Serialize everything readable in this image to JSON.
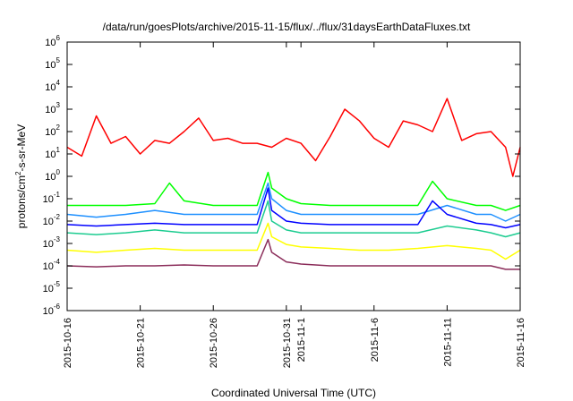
{
  "chart_data": {
    "type": "line",
    "title": "/data/run/goesPlots/archive/2015-11-15/flux/../flux/31daysEarthDataFluxes.txt",
    "xlabel": "Coordinated Universal Time (UTC)",
    "ylabel": {
      "base": "protons/cm",
      "exp": "2",
      "rest": "-s-sr-MeV"
    },
    "yscale": "log",
    "xlim": [
      "2015-10-16",
      "2015-11-16"
    ],
    "ylim": [
      1e-06,
      1000000
    ],
    "grid": false,
    "y_ticks": [
      {
        "base": "10",
        "exp": "-6",
        "value": 1e-06
      },
      {
        "base": "10",
        "exp": "-5",
        "value": 1e-05
      },
      {
        "base": "10",
        "exp": "-4",
        "value": 0.0001
      },
      {
        "base": "10",
        "exp": "-3",
        "value": 0.001
      },
      {
        "base": "10",
        "exp": "-2",
        "value": 0.01
      },
      {
        "base": "10",
        "exp": "-1",
        "value": 0.1
      },
      {
        "base": "10",
        "exp": "0",
        "value": 1
      },
      {
        "base": "10",
        "exp": "1",
        "value": 10
      },
      {
        "base": "10",
        "exp": "2",
        "value": 100
      },
      {
        "base": "10",
        "exp": "3",
        "value": 1000
      },
      {
        "base": "10",
        "exp": "4",
        "value": 10000
      },
      {
        "base": "10",
        "exp": "5",
        "value": 100000
      },
      {
        "base": "10",
        "exp": "6",
        "value": 1000000
      }
    ],
    "x_ticks": [
      {
        "label": "2015-10-16",
        "date": "2015-10-16"
      },
      {
        "label": "2015-10-21",
        "date": "2015-10-21"
      },
      {
        "label": "2015-10-26",
        "date": "2015-10-26"
      },
      {
        "label": "2015-10-31",
        "date": "2015-10-31"
      },
      {
        "label": "2015-11-1",
        "date": "2015-11-01"
      },
      {
        "label": "2015-11-6",
        "date": "2015-11-06"
      },
      {
        "label": "2015-11-11",
        "date": "2015-11-11"
      },
      {
        "label": "2015-11-16",
        "date": "2015-11-16"
      }
    ],
    "series": [
      {
        "color": "#8b2d5a",
        "x": [
          "2015-10-16",
          "2015-10-18",
          "2015-10-20",
          "2015-10-22",
          "2015-10-24",
          "2015-10-26",
          "2015-10-28",
          "2015-10-29",
          "2015-10-29T18",
          "2015-10-30",
          "2015-10-31",
          "2015-11-01",
          "2015-11-03",
          "2015-11-05",
          "2015-11-07",
          "2015-11-09",
          "2015-11-11",
          "2015-11-13",
          "2015-11-14",
          "2015-11-15",
          "2015-11-16"
        ],
        "y": [
          0.0001,
          9e-05,
          0.0001,
          0.0001,
          0.00011,
          0.0001,
          0.0001,
          0.0001,
          0.0015,
          0.0004,
          0.00015,
          0.00012,
          0.0001,
          0.0001,
          0.0001,
          0.0001,
          0.0001,
          0.0001,
          0.0001,
          7e-05,
          7e-05
        ]
      },
      {
        "color": "#ffff00",
        "x": [
          "2015-10-16",
          "2015-10-18",
          "2015-10-20",
          "2015-10-22",
          "2015-10-24",
          "2015-10-26",
          "2015-10-28",
          "2015-10-29",
          "2015-10-29T18",
          "2015-10-30",
          "2015-10-31",
          "2015-11-01",
          "2015-11-03",
          "2015-11-05",
          "2015-11-07",
          "2015-11-09",
          "2015-11-11",
          "2015-11-13",
          "2015-11-14",
          "2015-11-15",
          "2015-11-16"
        ],
        "y": [
          0.0005,
          0.0004,
          0.0005,
          0.0006,
          0.0005,
          0.0005,
          0.0005,
          0.0005,
          0.008,
          0.002,
          0.0009,
          0.0007,
          0.0006,
          0.0005,
          0.0005,
          0.0006,
          0.0008,
          0.0006,
          0.0005,
          0.0002,
          0.0005
        ]
      },
      {
        "color": "#1ccc90",
        "x": [
          "2015-10-16",
          "2015-10-18",
          "2015-10-20",
          "2015-10-22",
          "2015-10-24",
          "2015-10-26",
          "2015-10-28",
          "2015-10-29",
          "2015-10-29T18",
          "2015-10-30",
          "2015-10-31",
          "2015-11-01",
          "2015-11-03",
          "2015-11-05",
          "2015-11-07",
          "2015-11-09",
          "2015-11-11",
          "2015-11-13",
          "2015-11-14",
          "2015-11-15",
          "2015-11-16"
        ],
        "y": [
          0.003,
          0.0025,
          0.003,
          0.004,
          0.003,
          0.003,
          0.003,
          0.003,
          0.08,
          0.01,
          0.004,
          0.003,
          0.003,
          0.003,
          0.003,
          0.003,
          0.006,
          0.004,
          0.003,
          0.002,
          0.003
        ]
      },
      {
        "color": "#1e90ff",
        "x": [
          "2015-10-16",
          "2015-10-18",
          "2015-10-20",
          "2015-10-22",
          "2015-10-24",
          "2015-10-26",
          "2015-10-28",
          "2015-10-29",
          "2015-10-29T18",
          "2015-10-30",
          "2015-10-31",
          "2015-11-01",
          "2015-11-03",
          "2015-11-05",
          "2015-11-07",
          "2015-11-09",
          "2015-11-11",
          "2015-11-13",
          "2015-11-14",
          "2015-11-15",
          "2015-11-16"
        ],
        "y": [
          0.02,
          0.015,
          0.02,
          0.03,
          0.02,
          0.02,
          0.02,
          0.02,
          0.5,
          0.1,
          0.03,
          0.02,
          0.02,
          0.02,
          0.02,
          0.02,
          0.05,
          0.02,
          0.02,
          0.01,
          0.02
        ]
      },
      {
        "color": "#00ff00",
        "x": [
          "2015-10-16",
          "2015-10-18",
          "2015-10-20",
          "2015-10-22",
          "2015-10-23",
          "2015-10-24",
          "2015-10-26",
          "2015-10-28",
          "2015-10-29",
          "2015-10-29T18",
          "2015-10-30",
          "2015-10-31",
          "2015-11-01",
          "2015-11-03",
          "2015-11-05",
          "2015-11-07",
          "2015-11-09",
          "2015-11-10",
          "2015-11-11",
          "2015-11-13",
          "2015-11-14",
          "2015-11-15",
          "2015-11-16"
        ],
        "y": [
          0.05,
          0.05,
          0.05,
          0.06,
          0.5,
          0.08,
          0.05,
          0.05,
          0.05,
          1.5,
          0.3,
          0.1,
          0.06,
          0.05,
          0.05,
          0.05,
          0.05,
          0.6,
          0.1,
          0.05,
          0.05,
          0.03,
          0.05
        ]
      },
      {
        "color": "#0000ff",
        "x": [
          "2015-10-16",
          "2015-10-18",
          "2015-10-20",
          "2015-10-22",
          "2015-10-24",
          "2015-10-26",
          "2015-10-28",
          "2015-10-29",
          "2015-10-29T18",
          "2015-10-30",
          "2015-10-31",
          "2015-11-01",
          "2015-11-03",
          "2015-11-05",
          "2015-11-07",
          "2015-11-09",
          "2015-11-10",
          "2015-11-11",
          "2015-11-13",
          "2015-11-14",
          "2015-11-15",
          "2015-11-16"
        ],
        "y": [
          0.007,
          0.006,
          0.007,
          0.008,
          0.007,
          0.007,
          0.007,
          0.007,
          0.3,
          0.03,
          0.01,
          0.008,
          0.007,
          0.007,
          0.007,
          0.007,
          0.08,
          0.02,
          0.008,
          0.007,
          0.005,
          0.007
        ]
      },
      {
        "color": "#ff0000",
        "x": [
          "2015-10-16",
          "2015-10-17",
          "2015-10-18",
          "2015-10-19",
          "2015-10-20",
          "2015-10-21",
          "2015-10-22",
          "2015-10-23",
          "2015-10-24",
          "2015-10-25",
          "2015-10-26",
          "2015-10-27",
          "2015-10-28",
          "2015-10-29",
          "2015-10-30",
          "2015-10-31",
          "2015-11-01",
          "2015-11-02",
          "2015-11-03",
          "2015-11-04",
          "2015-11-05",
          "2015-11-06",
          "2015-11-07",
          "2015-11-08",
          "2015-11-09",
          "2015-11-10",
          "2015-11-11",
          "2015-11-12",
          "2015-11-13",
          "2015-11-14",
          "2015-11-15",
          "2015-11-15T12",
          "2015-11-16"
        ],
        "y": [
          20,
          8,
          500,
          30,
          60,
          10,
          40,
          30,
          100,
          400,
          40,
          50,
          30,
          30,
          20,
          50,
          30,
          5,
          60,
          1000,
          300,
          50,
          20,
          300,
          200,
          100,
          3000,
          40,
          80,
          100,
          20,
          1,
          20
        ]
      }
    ]
  }
}
